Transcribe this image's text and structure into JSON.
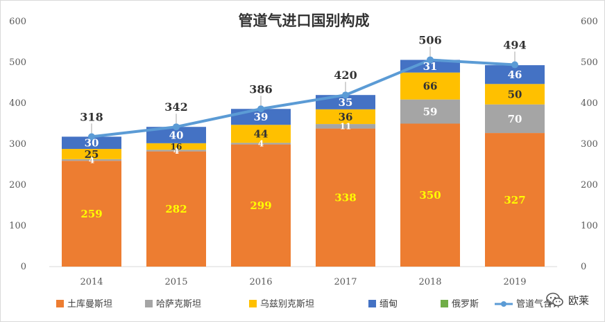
{
  "chart_data": {
    "type": "bar",
    "stacked": true,
    "title": "管道气进口国别构成",
    "categories": [
      "2014",
      "2015",
      "2016",
      "2017",
      "2018",
      "2019"
    ],
    "y_ticks": [
      "0",
      "100",
      "200",
      "300",
      "400",
      "500",
      "600"
    ],
    "ylim": [
      0,
      600
    ],
    "grid": false,
    "secondary_axis": true,
    "legend_position": "bottom",
    "series": [
      {
        "name": "土库曼斯坦",
        "color": "#ed7d31",
        "label_color": "#ffff00",
        "values": [
          259,
          282,
          299,
          338,
          350,
          327
        ]
      },
      {
        "name": "哈萨克斯坦",
        "color": "#a5a5a5",
        "label_color": "#ffffff",
        "values": [
          4,
          4,
          4,
          11,
          59,
          70
        ]
      },
      {
        "name": "乌兹别克斯坦",
        "color": "#ffc000",
        "label_color": "#333333",
        "values": [
          25,
          16,
          44,
          36,
          66,
          50
        ]
      },
      {
        "name": "缅甸",
        "color": "#4472c4",
        "label_color": "#ffffff",
        "values": [
          30,
          40,
          39,
          35,
          31,
          46
        ]
      },
      {
        "name": "俄罗斯",
        "color": "#70ad47",
        "label_color": "#ffffff",
        "values": [
          0,
          0,
          0,
          0,
          0,
          0
        ]
      }
    ],
    "line_series": {
      "name": "管道气合计",
      "color": "#5b9bd5",
      "values": [
        318,
        342,
        386,
        420,
        506,
        494
      ]
    },
    "segment_labels": [
      [
        "259",
        "4",
        "25",
        "30"
      ],
      [
        "282",
        "4",
        "16",
        "40"
      ],
      [
        "299",
        "4",
        "44",
        "39"
      ],
      [
        "338",
        "11",
        "36",
        "35"
      ],
      [
        "350",
        "59",
        "66",
        "31"
      ],
      [
        "327",
        "70",
        "50",
        "46"
      ]
    ],
    "total_labels": [
      "318",
      "342",
      "386",
      "420",
      "506",
      "494"
    ]
  },
  "watermark": {
    "icon": "wechat-icon",
    "text": "欧莱"
  }
}
